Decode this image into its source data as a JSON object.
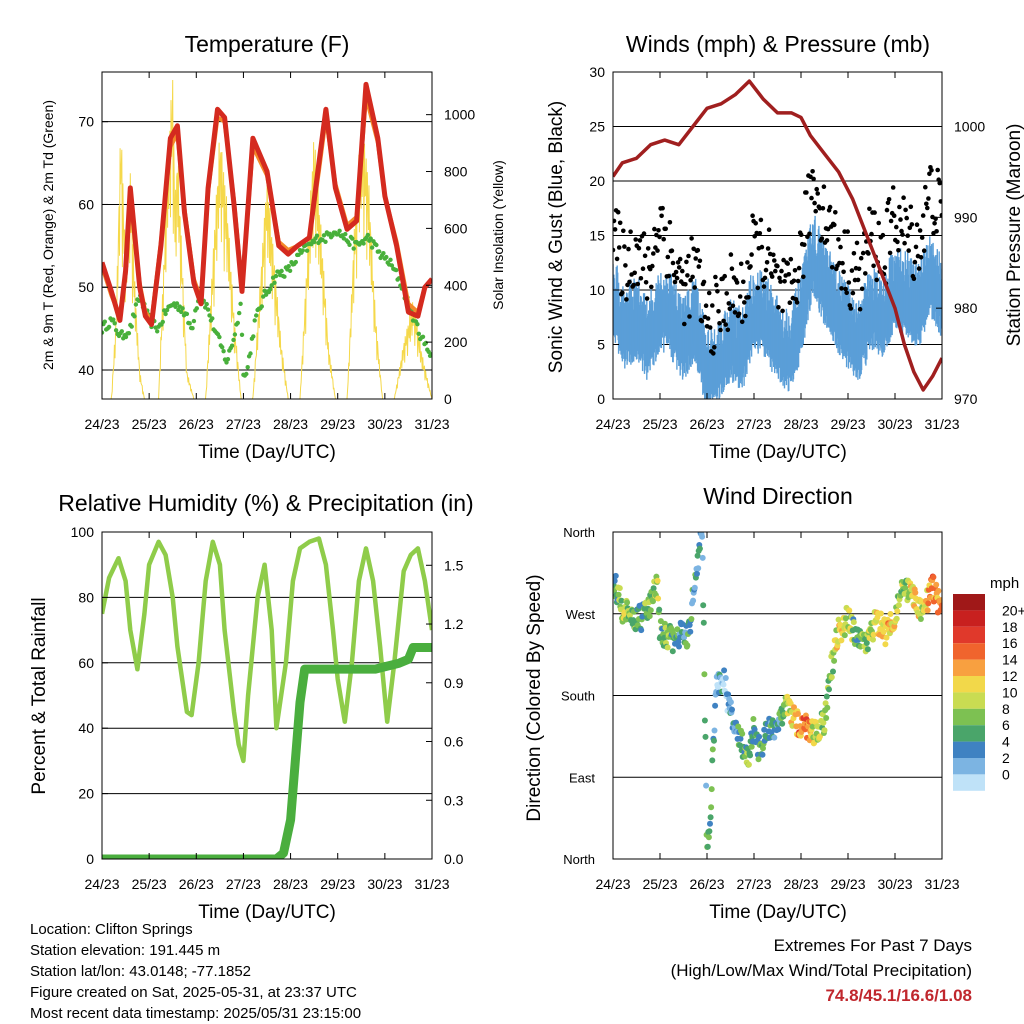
{
  "panels": {
    "temperature": {
      "title": "Temperature (F)",
      "ylabel_left": "2m & 9m T (Red, Orange) & 2m Td (Green)",
      "ylabel_right": "Solar Insolation (Yellow)",
      "xlabel": "Time (Day/UTC)"
    },
    "winds": {
      "title": "Winds (mph) & Pressure (mb)",
      "ylabel_left": "Sonic Wind & Gust (Blue, Black)",
      "ylabel_right": "Station Pressure (Maroon)",
      "xlabel": "Time (Day/UTC)"
    },
    "humidity": {
      "title": "Relative Humidity (%) & Precipitation (in)",
      "ylabel_left": "Percent & Total Rainfall",
      "xlabel": "Time (Day/UTC)"
    },
    "direction": {
      "title": "Wind Direction",
      "ylabel_left": "Direction (Colored By Speed)",
      "xlabel": "Time (Day/UTC)",
      "colorbar_title": "mph",
      "colorbar_labels": [
        "20+",
        "18",
        "16",
        "14",
        "12",
        "10",
        "8",
        "6",
        "4",
        "2",
        "0"
      ],
      "colorbar_colors": [
        "#a01818",
        "#c8201f",
        "#e0392b",
        "#f0642d",
        "#f8a040",
        "#f2d84a",
        "#c9dc52",
        "#7dc152",
        "#4aa56a",
        "#3f82c2",
        "#7cb4e2",
        "#bfe2f8"
      ]
    }
  },
  "info": {
    "location": "Location: Clifton Springs",
    "elevation": "Station elevation: 191.445 m",
    "latlon": "Station lat/lon: 43.0148; -77.1852",
    "created": "Figure created on Sat, 2025-05-31, at 23:37 UTC",
    "recent": "Most recent data timestamp: 2025/05/31 23:15:00"
  },
  "extremes": {
    "line1": "Extremes For Past 7 Days",
    "line2": "(High/Low/Max Wind/Total Precipitation)",
    "values": "74.8/45.1/16.6/1.08"
  },
  "chart_data": [
    {
      "type": "line",
      "title": "Temperature (F)",
      "xlabel": "Time (Day/UTC)",
      "ylabel": "2m & 9m T (Red, Orange) & 2m Td (Green)",
      "ylabel_right": "Solar Insolation (Yellow)",
      "xticks": [
        "24/23",
        "25/23",
        "26/23",
        "27/23",
        "28/23",
        "29/23",
        "30/23",
        "31/23"
      ],
      "xlim": [
        0,
        7
      ],
      "ylim": [
        36.5,
        76
      ],
      "yticks": [
        40,
        50,
        60,
        70
      ],
      "ylim_right": [
        0,
        1150
      ],
      "yticks_right": [
        0,
        200,
        400,
        600,
        800,
        1000
      ],
      "series": [
        {
          "name": "2m T",
          "color": "#d42a1f",
          "x": [
            0,
            0.2,
            0.38,
            0.5,
            0.6,
            0.8,
            0.92,
            1.05,
            1.25,
            1.45,
            1.6,
            1.75,
            1.95,
            2.1,
            2.25,
            2.45,
            2.6,
            2.8,
            2.97,
            3.2,
            3.5,
            3.75,
            3.95,
            4.15,
            4.4,
            4.6,
            4.75,
            4.95,
            5.2,
            5.4,
            5.6,
            5.85,
            6.0,
            6.25,
            6.5,
            6.7,
            6.85,
            7.0
          ],
          "y": [
            53,
            49.5,
            46,
            52,
            62,
            50,
            46.5,
            45.5,
            55,
            68,
            69.5,
            59,
            50.5,
            48,
            62,
            71.5,
            70.5,
            60,
            49.5,
            68,
            64,
            55,
            54,
            55,
            56,
            65,
            71.5,
            62,
            57,
            58,
            74.5,
            68,
            61,
            55,
            47,
            46.5,
            50,
            51
          ]
        },
        {
          "name": "9m T",
          "color": "#f48a2a",
          "x": [
            0,
            0.2,
            0.38,
            0.5,
            0.6,
            0.8,
            0.92,
            1.05,
            1.25,
            1.45,
            1.6,
            1.75,
            1.95,
            2.1,
            2.25,
            2.45,
            2.6,
            2.8,
            2.97,
            3.2,
            3.5,
            3.75,
            3.95,
            4.15,
            4.4,
            4.6,
            4.75,
            4.95,
            5.2,
            5.4,
            5.6,
            5.85,
            6.0,
            6.25,
            6.5,
            6.7,
            6.85,
            7.0
          ],
          "y": [
            52.5,
            49,
            46.5,
            51.5,
            61,
            50.5,
            47,
            46,
            55.5,
            67,
            68.5,
            59.5,
            51,
            48.5,
            61.5,
            70.5,
            70,
            60.5,
            50,
            67,
            63.5,
            55.5,
            54.5,
            55,
            56,
            64,
            70.5,
            62.5,
            57.5,
            58.5,
            73,
            67.5,
            61,
            55.5,
            48,
            47,
            50,
            51
          ]
        },
        {
          "name": "2m Td",
          "color": "#48b03b",
          "x": [
            0,
            0.2,
            0.4,
            0.6,
            0.8,
            1.0,
            1.2,
            1.35,
            1.5,
            1.7,
            1.9,
            2.05,
            2.2,
            2.45,
            2.65,
            2.8,
            2.95,
            3.0,
            3.05,
            3.25,
            3.45,
            3.7,
            3.95,
            4.2,
            4.4,
            4.6,
            4.75,
            4.95,
            5.15,
            5.4,
            5.65,
            5.9,
            6.1,
            6.3,
            6.5,
            6.7,
            6.85,
            7.0
          ],
          "y": [
            45,
            46,
            44,
            45,
            49,
            46,
            45,
            47,
            48,
            47.5,
            45,
            49,
            48,
            44,
            41,
            44,
            48,
            40,
            39,
            46,
            49,
            51.5,
            52,
            54,
            55,
            56,
            56,
            57,
            56,
            55,
            56,
            54,
            53,
            51,
            48,
            45,
            43,
            42
          ]
        },
        {
          "name": "Solar Insolation",
          "axis": "right",
          "color": "#f5d84a",
          "x": [
            0,
            0.2,
            0.3,
            0.4,
            0.5,
            0.6,
            0.7,
            0.8,
            0.9,
            1.0,
            1.2,
            1.4,
            1.5,
            1.55,
            1.6,
            1.7,
            1.8,
            1.95,
            2.2,
            2.35,
            2.5,
            2.65,
            2.8,
            2.95,
            3.2,
            3.35,
            3.5,
            3.65,
            3.8,
            3.95,
            4.2,
            4.35,
            4.5,
            4.65,
            4.8,
            4.95,
            5.2,
            5.35,
            5.5,
            5.65,
            5.8,
            5.95,
            6.2,
            6.4,
            6.6,
            6.8,
            7.0
          ],
          "y": [
            0,
            0,
            300,
            1000,
            500,
            800,
            400,
            100,
            0,
            0,
            0,
            900,
            1150,
            700,
            900,
            500,
            100,
            0,
            0,
            500,
            950,
            700,
            300,
            0,
            0,
            400,
            800,
            500,
            200,
            0,
            0,
            500,
            950,
            600,
            200,
            0,
            0,
            600,
            1000,
            800,
            300,
            0,
            0,
            200,
            350,
            150,
            0
          ]
        }
      ]
    },
    {
      "type": "line",
      "title": "Winds (mph) & Pressure (mb)",
      "xlabel": "Time (Day/UTC)",
      "ylabel": "Sonic Wind & Gust (Blue, Black)",
      "ylabel_right": "Station Pressure (Maroon)",
      "xticks": [
        "24/23",
        "25/23",
        "26/23",
        "27/23",
        "28/23",
        "29/23",
        "30/23",
        "31/23"
      ],
      "xlim": [
        0,
        7
      ],
      "ylim": [
        0,
        30
      ],
      "yticks": [
        0,
        5,
        10,
        15,
        20,
        25,
        30
      ],
      "ylim_right": [
        970,
        1006
      ],
      "yticks_right": [
        970,
        980,
        990,
        1000
      ],
      "series": [
        {
          "name": "Sonic Wind",
          "color": "#5a9ed8",
          "x": [
            0,
            0.25,
            0.5,
            0.75,
            1.0,
            1.25,
            1.5,
            1.75,
            2.0,
            2.25,
            2.5,
            2.75,
            3.0,
            3.25,
            3.5,
            3.75,
            4.0,
            4.25,
            4.5,
            4.75,
            5.0,
            5.25,
            5.5,
            5.75,
            6.0,
            6.25,
            6.5,
            6.75,
            7.0
          ],
          "y": [
            10,
            7,
            8,
            6,
            9,
            8,
            6,
            8,
            3,
            4,
            6,
            5,
            9,
            8,
            6,
            5,
            8,
            14,
            11,
            9,
            7,
            6,
            9,
            8,
            11,
            10,
            9,
            12,
            10
          ]
        },
        {
          "name": "Gust",
          "color": "#000000",
          "x": [
            0,
            0.25,
            0.5,
            0.75,
            1.0,
            1.25,
            1.5,
            1.75,
            2.0,
            2.25,
            2.5,
            2.75,
            3.0,
            3.25,
            3.5,
            3.75,
            4.0,
            4.25,
            4.5,
            4.75,
            5.0,
            5.25,
            5.5,
            5.75,
            6.0,
            6.25,
            6.5,
            6.75,
            7.0
          ],
          "y": [
            15,
            12,
            14,
            11,
            17,
            13,
            10,
            12,
            7,
            8,
            10,
            9,
            14,
            13,
            10,
            9,
            13,
            20,
            17,
            14,
            12,
            11,
            15,
            13,
            17,
            15,
            14,
            19,
            17
          ]
        },
        {
          "name": "Station Pressure",
          "axis": "right",
          "color": "#a01f1f",
          "x": [
            0,
            0.2,
            0.5,
            0.8,
            1.1,
            1.4,
            1.7,
            2.0,
            2.3,
            2.6,
            2.9,
            3.2,
            3.5,
            3.8,
            4.0,
            4.2,
            4.5,
            4.8,
            5.1,
            5.4,
            5.7,
            6.0,
            6.2,
            6.4,
            6.6,
            6.8,
            7.0
          ],
          "y": [
            994.5,
            996,
            996.5,
            998,
            998.5,
            998,
            1000,
            1002,
            1002.5,
            1003.5,
            1005,
            1003,
            1001.5,
            1001.5,
            1001,
            999,
            997,
            995,
            992,
            988,
            984,
            980,
            976,
            973,
            971,
            972.5,
            974.5
          ]
        }
      ]
    },
    {
      "type": "line",
      "title": "Relative Humidity (%) & Precipitation (in)",
      "xlabel": "Time (Day/UTC)",
      "ylabel": "Percent & Total Rainfall",
      "xticks": [
        "24/23",
        "25/23",
        "26/23",
        "27/23",
        "28/23",
        "29/23",
        "30/23",
        "31/23"
      ],
      "xlim": [
        0,
        7
      ],
      "ylim": [
        0,
        100
      ],
      "yticks": [
        0,
        20,
        40,
        60,
        80,
        100
      ],
      "ylim_right": [
        0,
        1.67
      ],
      "yticks_right": [
        0.0,
        0.3,
        0.6,
        0.9,
        1.2,
        1.5
      ],
      "series": [
        {
          "name": "Relative Humidity",
          "color": "#8fcc4a",
          "x": [
            0,
            0.15,
            0.35,
            0.5,
            0.6,
            0.75,
            0.9,
            1.0,
            1.2,
            1.35,
            1.5,
            1.6,
            1.8,
            1.9,
            2.05,
            2.2,
            2.35,
            2.5,
            2.6,
            2.8,
            2.9,
            3.0,
            3.1,
            3.3,
            3.45,
            3.6,
            3.7,
            3.9,
            4.05,
            4.2,
            4.4,
            4.6,
            4.75,
            4.9,
            5.0,
            5.15,
            5.3,
            5.45,
            5.6,
            5.75,
            5.9,
            6.05,
            6.2,
            6.4,
            6.55,
            6.7,
            6.85,
            7.0
          ],
          "y": [
            75,
            86,
            92,
            85,
            70,
            58,
            75,
            90,
            97,
            93,
            80,
            65,
            45,
            44,
            60,
            85,
            97,
            90,
            70,
            45,
            35,
            30,
            50,
            80,
            90,
            70,
            40,
            60,
            85,
            95,
            97,
            98,
            90,
            70,
            55,
            42,
            60,
            85,
            95,
            85,
            65,
            42,
            60,
            88,
            93,
            95,
            85,
            70
          ]
        },
        {
          "name": "Total Rainfall",
          "axis": "right",
          "color": "#4aae3e",
          "x": [
            0,
            3.2,
            3.7,
            3.85,
            4.0,
            4.1,
            4.2,
            4.3,
            4.5,
            5.8,
            6.3,
            6.5,
            6.6,
            7.0
          ],
          "y": [
            0,
            0,
            0,
            0.03,
            0.2,
            0.5,
            0.8,
            0.97,
            0.97,
            0.97,
            1.0,
            1.02,
            1.08,
            1.08
          ]
        }
      ]
    },
    {
      "type": "scatter",
      "title": "Wind Direction",
      "xlabel": "Time (Day/UTC)",
      "ylabel": "Direction (Colored By Speed)",
      "xticks": [
        "24/23",
        "25/23",
        "26/23",
        "27/23",
        "28/23",
        "29/23",
        "30/23",
        "31/23"
      ],
      "xlim": [
        0,
        7
      ],
      "ylim": [
        0,
        360
      ],
      "yticks": [
        "North",
        "East",
        "South",
        "West",
        "North"
      ],
      "colorbar": "mph",
      "series": [
        {
          "name": "Direction",
          "x": [
            0.05,
            0.2,
            0.4,
            0.6,
            0.8,
            0.95,
            1.0,
            1.15,
            1.3,
            1.5,
            1.6,
            1.8,
            1.9,
            2.0,
            2.05,
            2.2,
            2.35,
            2.5,
            2.7,
            2.9,
            3.0,
            3.1,
            3.3,
            3.5,
            3.7,
            3.9,
            4.1,
            4.3,
            4.5,
            4.6,
            4.8,
            5.0,
            5.2,
            5.4,
            5.6,
            5.8,
            6.0,
            6.2,
            6.4,
            6.6,
            6.8,
            6.95
          ],
          "y": [
            300,
            275,
            265,
            265,
            280,
            310,
            250,
            245,
            240,
            250,
            245,
            330,
            360,
            10,
            30,
            190,
            200,
            160,
            130,
            110,
            150,
            120,
            140,
            150,
            170,
            150,
            145,
            140,
            150,
            200,
            250,
            265,
            240,
            235,
            265,
            250,
            270,
            300,
            285,
            270,
            300,
            280
          ],
          "speed": [
            6,
            10,
            8,
            6,
            8,
            10,
            6,
            8,
            6,
            4,
            6,
            4,
            4,
            6,
            6,
            4,
            2,
            3,
            6,
            8,
            4,
            6,
            6,
            4,
            8,
            14,
            16,
            10,
            8,
            6,
            12,
            10,
            6,
            8,
            12,
            14,
            10,
            8,
            12,
            10,
            16,
            14
          ]
        }
      ]
    }
  ]
}
